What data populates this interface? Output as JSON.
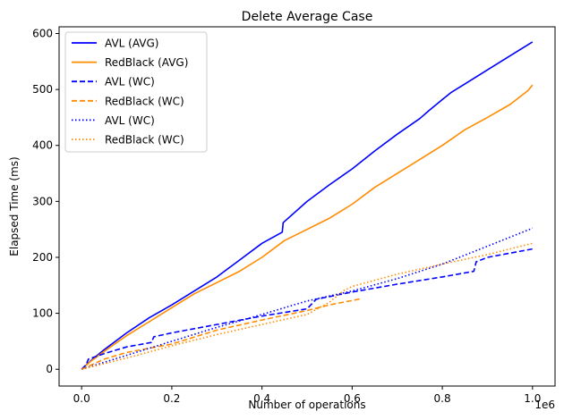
{
  "chart_data": {
    "type": "line",
    "title": "Delete Average Case",
    "xlabel": "Number of operations",
    "ylabel": "Elapsed Time (ms)",
    "x_offset_label": "1e6",
    "xlim": [
      -0.05,
      1.05
    ],
    "ylim": [
      -30,
      612
    ],
    "xticks": [
      0.0,
      0.2,
      0.4,
      0.6,
      0.8,
      1.0
    ],
    "xtick_labels": [
      "0.0",
      "0.2",
      "0.4",
      "0.6",
      "0.8",
      "1.0"
    ],
    "yticks": [
      0,
      100,
      200,
      300,
      400,
      500,
      600
    ],
    "ytick_labels": [
      "0",
      "100",
      "200",
      "300",
      "400",
      "500",
      "600"
    ],
    "legend_position": "top-left",
    "series": [
      {
        "name": "AVL (AVG)",
        "color": "#0000ff",
        "style": "solid",
        "x": [
          0,
          0.02,
          0.05,
          0.1,
          0.15,
          0.2,
          0.25,
          0.3,
          0.35,
          0.4,
          0.445,
          0.447,
          0.5,
          0.55,
          0.6,
          0.65,
          0.7,
          0.75,
          0.77,
          0.8,
          0.82,
          0.85,
          0.9,
          0.95,
          1.0
        ],
        "y": [
          0,
          15,
          35,
          65,
          92,
          115,
          140,
          165,
          195,
          225,
          245,
          262,
          300,
          330,
          358,
          390,
          420,
          448,
          462,
          482,
          495,
          510,
          535,
          560,
          585
        ]
      },
      {
        "name": "RedBlack (AVG)",
        "color": "#ff8c00",
        "style": "solid",
        "x": [
          0,
          0.02,
          0.05,
          0.1,
          0.15,
          0.2,
          0.25,
          0.3,
          0.35,
          0.4,
          0.45,
          0.5,
          0.55,
          0.6,
          0.65,
          0.7,
          0.75,
          0.8,
          0.85,
          0.9,
          0.95,
          0.99,
          1.0
        ],
        "y": [
          0,
          14,
          32,
          60,
          85,
          110,
          135,
          155,
          175,
          200,
          230,
          250,
          270,
          295,
          325,
          350,
          375,
          400,
          428,
          450,
          473,
          498,
          508
        ]
      },
      {
        "name": "AVL (WC)",
        "color": "#0000ff",
        "style": "dashed",
        "x": [
          0,
          0.01,
          0.015,
          0.05,
          0.1,
          0.155,
          0.16,
          0.2,
          0.3,
          0.4,
          0.5,
          0.52,
          0.6,
          0.7,
          0.8,
          0.87,
          0.875,
          0.9,
          1.0
        ],
        "y": [
          0,
          8,
          18,
          28,
          40,
          48,
          58,
          65,
          80,
          95,
          108,
          125,
          138,
          152,
          165,
          175,
          192,
          200,
          215
        ]
      },
      {
        "name": "RedBlack (WC)",
        "color": "#ff8c00",
        "style": "dashed",
        "x": [
          0,
          0.05,
          0.1,
          0.2,
          0.3,
          0.4,
          0.5,
          0.55,
          0.62
        ],
        "y": [
          0,
          18,
          30,
          45,
          70,
          88,
          105,
          115,
          126
        ]
      },
      {
        "name": "AVL (WC)",
        "color": "#0000ff",
        "style": "dotted",
        "x": [
          0,
          0.1,
          0.2,
          0.3,
          0.4,
          0.5,
          0.6,
          0.7,
          0.8,
          0.9,
          1.0
        ],
        "y": [
          0,
          25,
          50,
          75,
          98,
          122,
          140,
          162,
          188,
          220,
          252
        ]
      },
      {
        "name": "RedBlack (WC)",
        "color": "#ff8c00",
        "style": "dotted",
        "x": [
          0,
          0.1,
          0.2,
          0.3,
          0.4,
          0.5,
          0.55,
          0.58,
          0.6,
          0.7,
          0.8,
          0.9,
          1.0
        ],
        "y": [
          0,
          20,
          42,
          62,
          80,
          98,
          120,
          140,
          148,
          170,
          188,
          205,
          225
        ]
      }
    ]
  }
}
